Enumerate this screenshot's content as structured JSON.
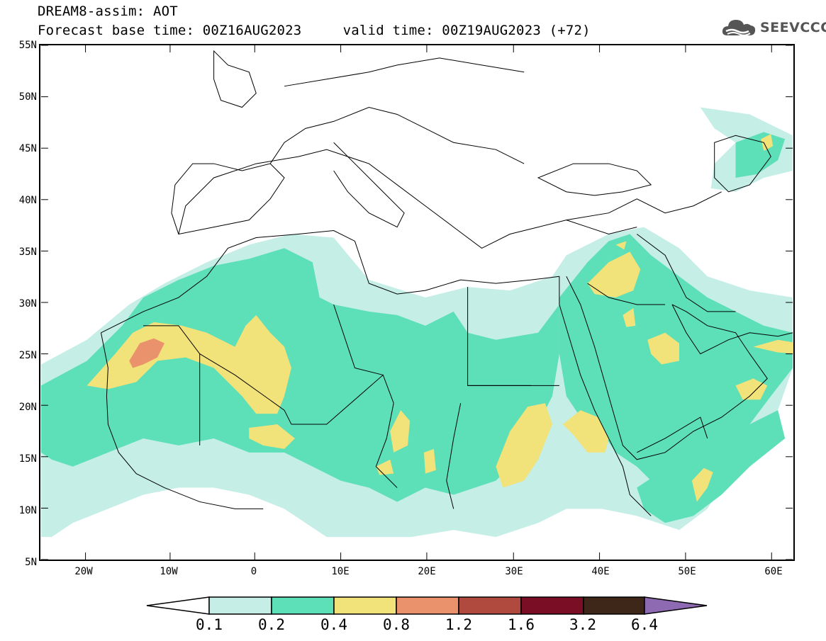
{
  "header": {
    "line1": "DREAM8-assim: AOT",
    "line2": "Forecast base time: 00Z16AUG2023     valid time: 00Z19AUG2023 (+72)"
  },
  "logo": {
    "text": "SEEVCCC",
    "icon": "cloud-icon"
  },
  "map": {
    "lat_labels": [
      "55N",
      "50N",
      "45N",
      "40N",
      "35N",
      "30N",
      "25N",
      "20N",
      "15N",
      "10N",
      "5N"
    ],
    "lon_labels": [
      "20W",
      "10W",
      "0",
      "10E",
      "20E",
      "30E",
      "40E",
      "50E",
      "60E"
    ],
    "colors": {
      "c01": "#c4eee6",
      "c02": "#5ddfb8",
      "c04": "#f2e27a",
      "c08": "#e9926c",
      "c12": "#b04a3e",
      "c16": "#7a0e24",
      "c32": "#3e2618",
      "c64": "#8e6ab2",
      "border": "#000000"
    }
  },
  "colorbar": {
    "labels": [
      "0.1",
      "0.2",
      "0.4",
      "0.8",
      "1.2",
      "1.6",
      "3.2",
      "6.4"
    ]
  }
}
